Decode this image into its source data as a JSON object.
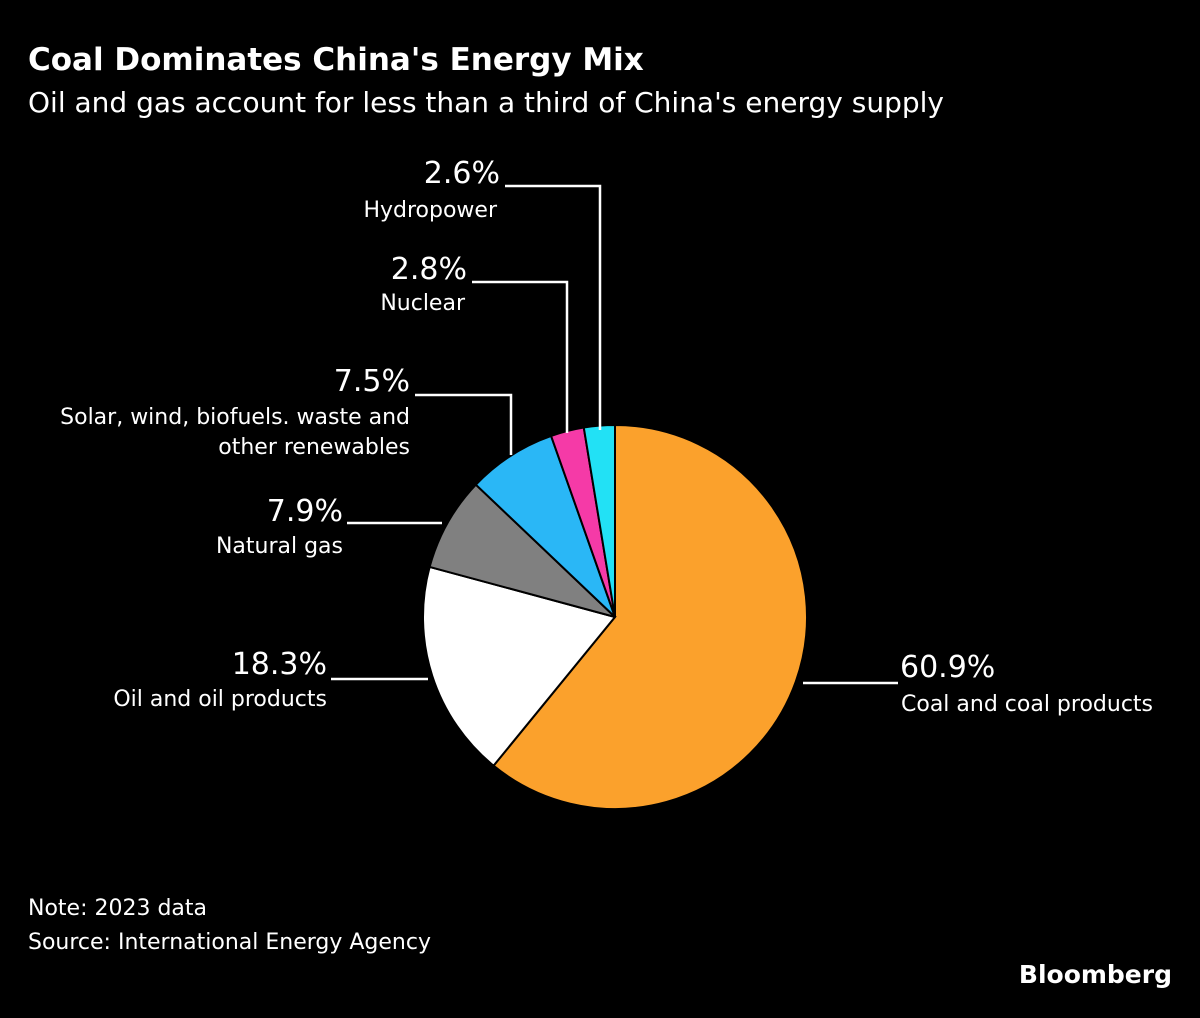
{
  "chart_data": {
    "type": "pie",
    "title": "Coal Dominates China's Energy Mix",
    "subtitle": "Oil and gas account for less than a third of China's energy supply",
    "start_angle": "12 o'clock, clockwise",
    "slices": [
      {
        "label": "Coal and coal products",
        "value": 60.9,
        "display": "60.9%",
        "color": "#fba12c"
      },
      {
        "label": "Oil and oil products",
        "value": 18.3,
        "display": "18.3%",
        "color": "#ffffff"
      },
      {
        "label": "Natural gas",
        "value": 7.9,
        "display": "7.9%",
        "color": "#808080"
      },
      {
        "label": "Solar, wind, biofuels. waste and other renewables",
        "label_lines": [
          "Solar, wind, biofuels. waste and",
          "other renewables"
        ],
        "value": 7.5,
        "display": "7.5%",
        "color": "#2ab7f6"
      },
      {
        "label": "Nuclear",
        "value": 2.8,
        "display": "2.8%",
        "color": "#f53aa7"
      },
      {
        "label": "Hydropower",
        "value": 2.6,
        "display": "2.6%",
        "color": "#22e1f5"
      }
    ]
  },
  "footer": {
    "note": "Note: 2023 data",
    "source": "Source: International Energy Agency",
    "brand": "Bloomberg"
  }
}
